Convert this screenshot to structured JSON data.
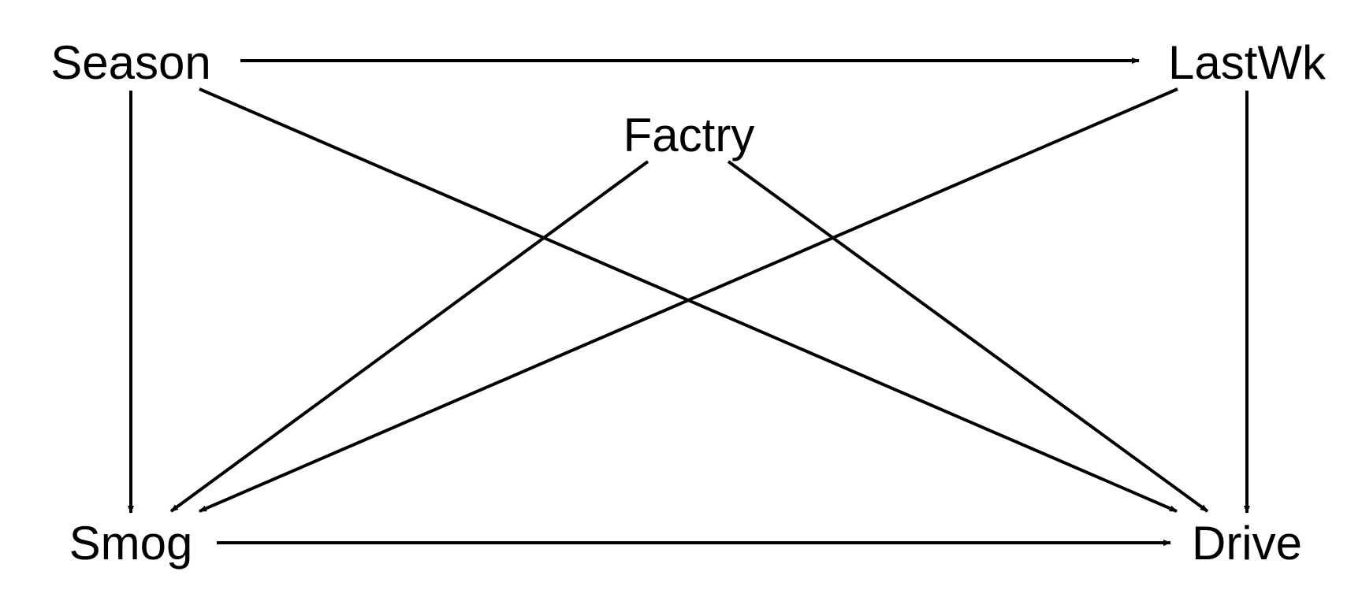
{
  "diagram": {
    "type": "directed-graph",
    "colors": {
      "edge": "#000000",
      "text": "#000000",
      "background": "#ffffff"
    },
    "nodes": [
      {
        "id": "season",
        "label": "Season"
      },
      {
        "id": "lastwk",
        "label": "LastWk"
      },
      {
        "id": "factry",
        "label": "Factry"
      },
      {
        "id": "smog",
        "label": "Smog"
      },
      {
        "id": "drive",
        "label": "Drive"
      }
    ],
    "edges": [
      {
        "from": "season",
        "to": "lastwk"
      },
      {
        "from": "season",
        "to": "smog"
      },
      {
        "from": "season",
        "to": "drive"
      },
      {
        "from": "factry",
        "to": "smog"
      },
      {
        "from": "factry",
        "to": "drive"
      },
      {
        "from": "lastwk",
        "to": "smog"
      },
      {
        "from": "lastwk",
        "to": "drive"
      },
      {
        "from": "smog",
        "to": "drive"
      }
    ]
  }
}
